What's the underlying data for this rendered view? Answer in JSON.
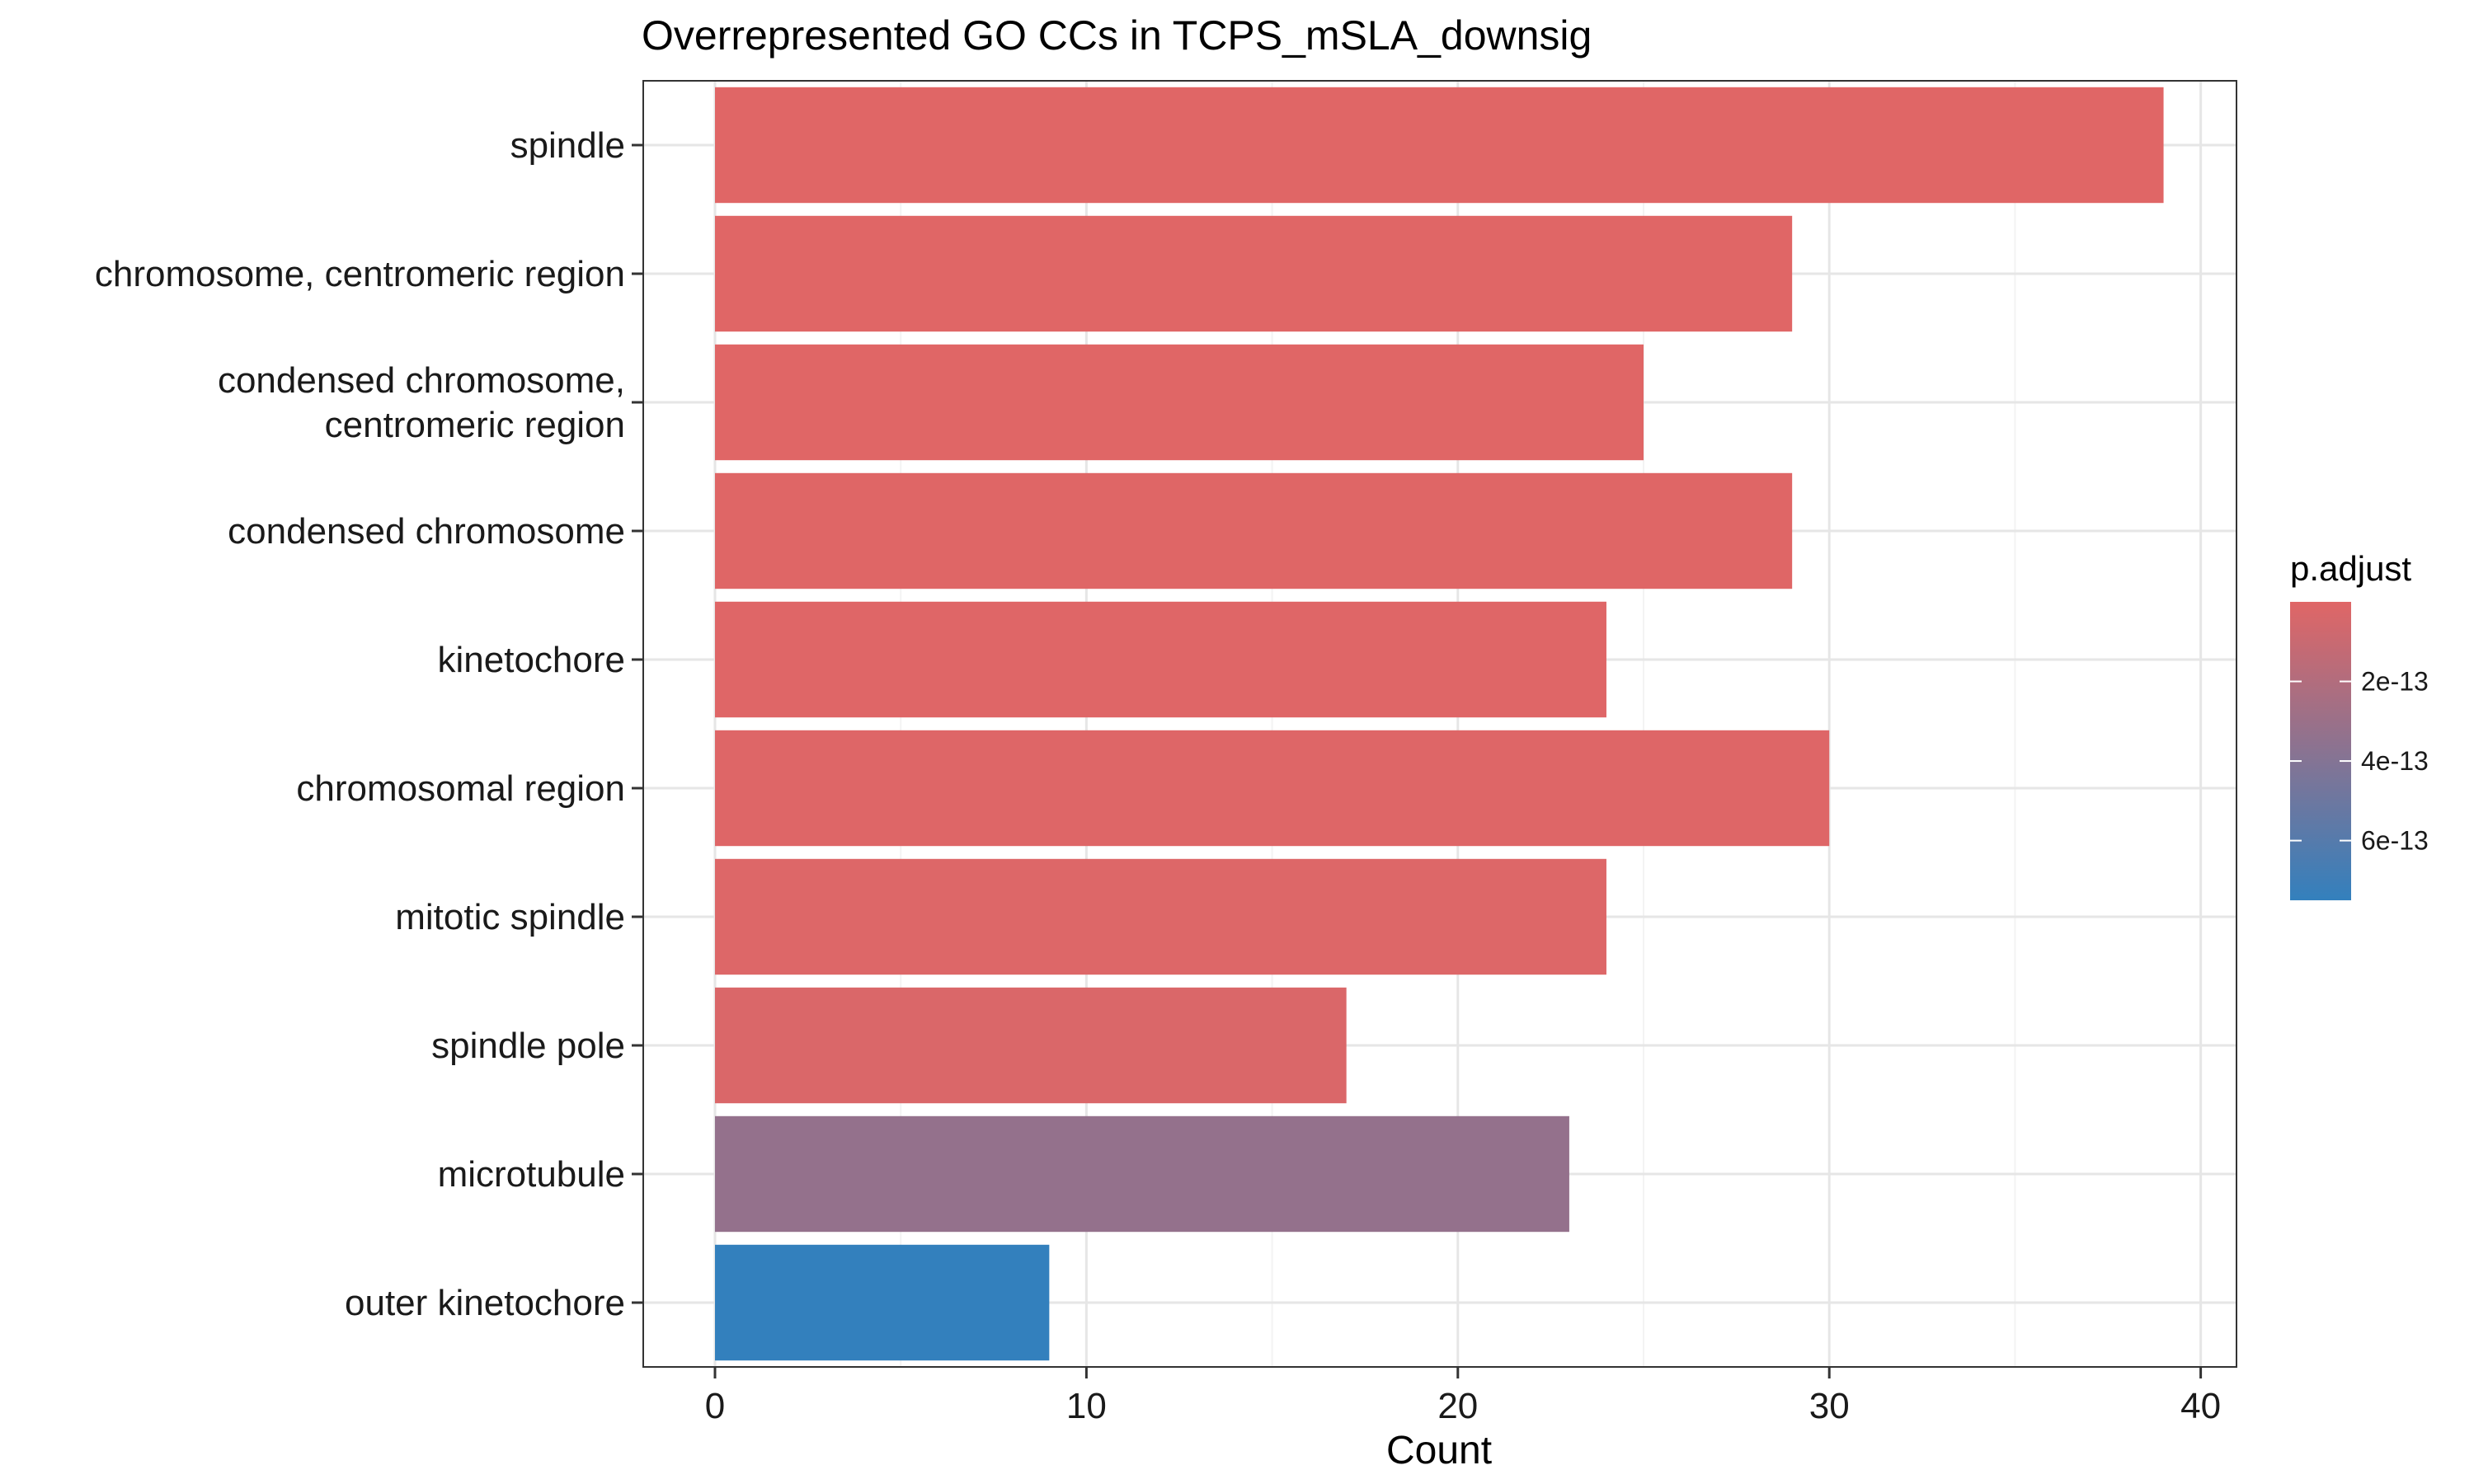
{
  "chart_data": {
    "type": "bar",
    "orientation": "horizontal",
    "title": "Overrepresented GO CCs in TCPS_mSLA_downsig",
    "xlabel": "Count",
    "ylabel": "",
    "xlim": [
      0,
      41
    ],
    "x_ticks": [
      0,
      10,
      20,
      30,
      40
    ],
    "grid": true,
    "categories": [
      "spindle",
      "chromosome, centromeric region",
      "condensed chromosome,\ncentromeric region",
      "condensed chromosome",
      "kinetochore",
      "chromosomal region",
      "mitotic spindle",
      "spindle pole",
      "microtubule",
      "outer kinetochore"
    ],
    "values": [
      39,
      29,
      25,
      29,
      24,
      30,
      24,
      17,
      23,
      9
    ],
    "p_adjust": [
      5e-16,
      1e-15,
      2e-15,
      3e-15,
      5e-15,
      8e-15,
      1.5e-14,
      2.5e-14,
      3.3e-13,
      7.5e-13
    ],
    "legend": {
      "title": "p.adjust",
      "position": "right",
      "ticks": [
        2e-13,
        4e-13,
        6e-13
      ],
      "tick_labels": [
        "2e-13",
        "4e-13",
        "6e-13"
      ],
      "range": [
        0,
        7.5e-13
      ],
      "color_low": "#e06666",
      "color_high": "#3380bd"
    }
  }
}
